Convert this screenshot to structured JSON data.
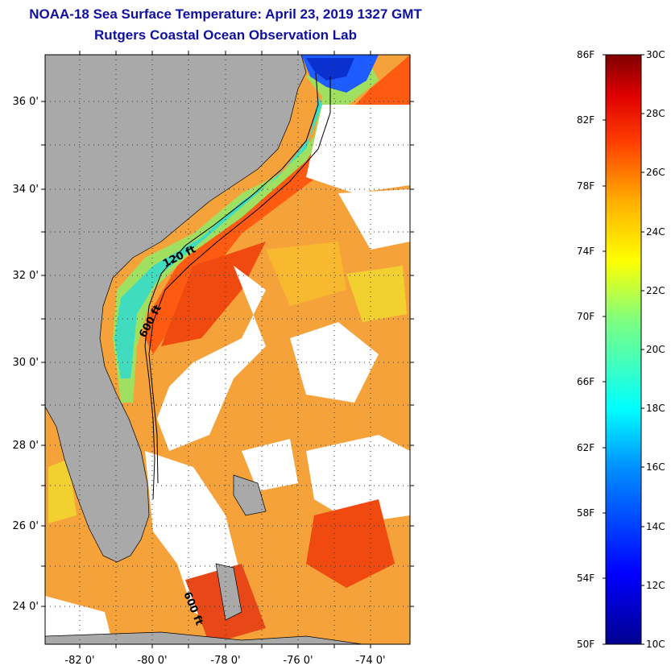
{
  "title": {
    "line1": "NOAA-18 Sea Surface Temperature:  April 23, 2019 1327 GMT",
    "line2": "Rutgers Coastal Ocean Observation Lab"
  },
  "map": {
    "lat_ticks": [
      "36 0'",
      "34 0'",
      "32 0'",
      "30 0'",
      "28 0'",
      "26 0'",
      "24 0'"
    ],
    "lon_ticks": [
      "-82 0'",
      "-80 0'",
      "-78 0'",
      "-76 0'",
      "-74 0'"
    ],
    "isobath_labels": {
      "shallow": "120 ft",
      "deep_north": "600 ft",
      "deep_south": "600 ft"
    }
  },
  "colorbar": {
    "fahrenheit": [
      "86F",
      "82F",
      "78F",
      "74F",
      "70F",
      "66F",
      "62F",
      "58F",
      "54F",
      "50F"
    ],
    "celsius": [
      "30C",
      "28C",
      "26C",
      "24C",
      "22C",
      "20C",
      "18C",
      "16C",
      "14C",
      "12C",
      "10C"
    ]
  },
  "colors": {
    "title": "#1010a0",
    "land": "#a9a9a9",
    "cold": "#1e5cff",
    "cool": "#2fd8c8",
    "mild": "#b8e83a",
    "warm": "#ff9a1e",
    "hot": "#f04a10",
    "cloud": "#ffffff"
  }
}
